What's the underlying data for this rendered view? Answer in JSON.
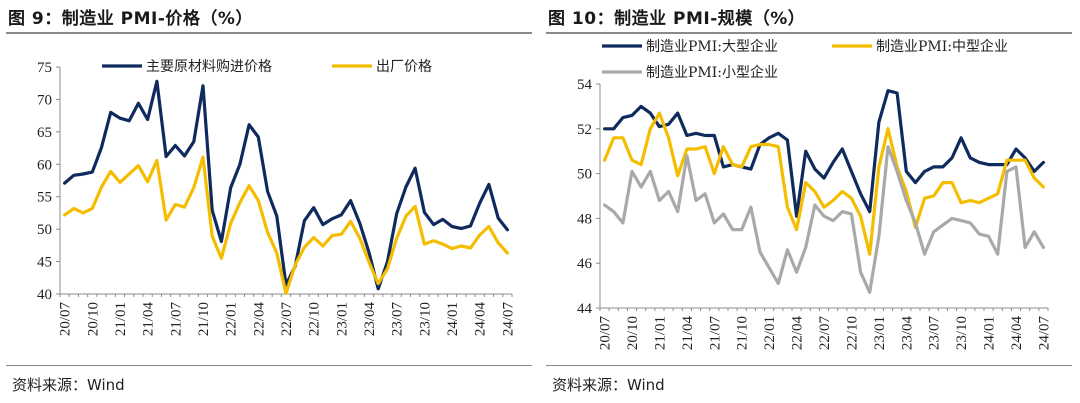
{
  "left_panel": {
    "title": "图 9：制造业 PMI-价格（%）",
    "source": "资料来源：Wind"
  },
  "right_panel": {
    "title": "图 10：制造业 PMI-规模（%）",
    "source": "资料来源：Wind"
  },
  "colors": {
    "navy": "#0f2a5c",
    "yellow": "#f5bd00",
    "gray": "#a9a9a9",
    "axis": "#8c8c8c"
  },
  "chart_data": [
    {
      "type": "line",
      "title": "",
      "xlabel": "",
      "ylabel": "",
      "ylim": [
        40,
        75
      ],
      "yticks": [
        40,
        45,
        50,
        55,
        60,
        65,
        70,
        75
      ],
      "x_tick_labels": [
        "20/07",
        "20/10",
        "21/01",
        "21/04",
        "21/07",
        "21/10",
        "22/01",
        "22/04",
        "22/07",
        "22/10",
        "23/01",
        "23/04",
        "23/07",
        "23/10",
        "24/01",
        "24/04",
        "24/07"
      ],
      "categories": [
        "20/07",
        "20/08",
        "20/09",
        "20/10",
        "20/11",
        "20/12",
        "21/01",
        "21/02",
        "21/03",
        "21/04",
        "21/05",
        "21/06",
        "21/07",
        "21/08",
        "21/09",
        "21/10",
        "21/11",
        "21/12",
        "22/01",
        "22/02",
        "22/03",
        "22/04",
        "22/05",
        "22/06",
        "22/07",
        "22/08",
        "22/09",
        "22/10",
        "22/11",
        "22/12",
        "23/01",
        "23/02",
        "23/03",
        "23/04",
        "23/05",
        "23/06",
        "23/07",
        "23/08",
        "23/09",
        "23/10",
        "23/11",
        "23/12",
        "24/01",
        "24/02",
        "24/03",
        "24/04",
        "24/05",
        "24/06",
        "24/07"
      ],
      "legend_position": "top",
      "series": [
        {
          "name": "主要原材料购进价格",
          "color": "#0f2a5c",
          "values": [
            57.1,
            58.3,
            58.5,
            58.8,
            62.6,
            68.0,
            67.1,
            66.7,
            69.4,
            66.9,
            72.8,
            61.2,
            62.9,
            61.3,
            63.5,
            72.1,
            52.9,
            48.1,
            56.4,
            60.0,
            66.1,
            64.2,
            55.8,
            52.0,
            41.4,
            44.3,
            51.3,
            53.3,
            50.7,
            51.6,
            52.2,
            54.4,
            50.9,
            46.4,
            40.8,
            45.0,
            52.4,
            56.5,
            59.4,
            52.6,
            50.7,
            51.5,
            50.4,
            50.1,
            50.5,
            54.0,
            56.9,
            51.7,
            49.9
          ]
        },
        {
          "name": "出厂价格",
          "color": "#f5bd00",
          "values": [
            52.2,
            53.2,
            52.5,
            53.2,
            56.5,
            58.9,
            57.2,
            58.5,
            59.8,
            57.3,
            60.6,
            51.4,
            53.8,
            53.4,
            56.4,
            61.1,
            48.9,
            45.5,
            50.9,
            54.1,
            56.7,
            54.4,
            49.5,
            46.3,
            40.1,
            44.5,
            47.2,
            48.7,
            47.4,
            49.0,
            49.2,
            51.2,
            48.6,
            44.9,
            41.6,
            43.9,
            48.6,
            52.0,
            53.5,
            47.7,
            48.2,
            47.7,
            47.0,
            47.4,
            47.1,
            49.1,
            50.4,
            47.9,
            46.3
          ]
        }
      ]
    },
    {
      "type": "line",
      "title": "",
      "xlabel": "",
      "ylabel": "",
      "ylim": [
        44,
        54
      ],
      "yticks": [
        44,
        46,
        48,
        50,
        52,
        54
      ],
      "x_tick_labels": [
        "20/07",
        "20/10",
        "21/01",
        "21/04",
        "21/07",
        "21/10",
        "22/01",
        "22/04",
        "22/07",
        "22/10",
        "23/01",
        "23/04",
        "23/07",
        "23/10",
        "24/01",
        "24/04",
        "24/07"
      ],
      "categories": [
        "20/07",
        "20/08",
        "20/09",
        "20/10",
        "20/11",
        "20/12",
        "21/01",
        "21/02",
        "21/03",
        "21/04",
        "21/05",
        "21/06",
        "21/07",
        "21/08",
        "21/09",
        "21/10",
        "21/11",
        "21/12",
        "22/01",
        "22/02",
        "22/03",
        "22/04",
        "22/05",
        "22/06",
        "22/07",
        "22/08",
        "22/09",
        "22/10",
        "22/11",
        "22/12",
        "23/01",
        "23/02",
        "23/03",
        "23/04",
        "23/05",
        "23/06",
        "23/07",
        "23/08",
        "23/09",
        "23/10",
        "23/11",
        "23/12",
        "24/01",
        "24/02",
        "24/03",
        "24/04",
        "24/05",
        "24/06",
        "24/07"
      ],
      "legend_position": "top",
      "series": [
        {
          "name": "制造业PMI:大型企业",
          "color": "#0f2a5c",
          "values": [
            52.0,
            52.0,
            52.5,
            52.6,
            53.0,
            52.7,
            52.1,
            52.2,
            52.7,
            51.7,
            51.8,
            51.7,
            51.7,
            50.3,
            50.4,
            50.3,
            50.2,
            51.3,
            51.6,
            51.8,
            51.5,
            48.1,
            51.0,
            50.2,
            49.8,
            50.5,
            51.1,
            50.1,
            49.1,
            48.3,
            52.3,
            53.7,
            53.6,
            50.1,
            49.6,
            50.1,
            50.3,
            50.3,
            50.7,
            51.6,
            50.7,
            50.5,
            50.4,
            50.4,
            50.4,
            51.1,
            50.7,
            50.1,
            50.5
          ]
        },
        {
          "name": "制造业PMI:中型企业",
          "color": "#f5bd00",
          "values": [
            50.6,
            51.6,
            51.6,
            50.6,
            50.4,
            52.0,
            52.7,
            51.6,
            49.9,
            51.1,
            51.1,
            51.2,
            50.0,
            51.2,
            50.4,
            50.3,
            51.2,
            51.3,
            51.3,
            51.2,
            48.5,
            47.5,
            49.6,
            49.2,
            48.5,
            48.8,
            49.2,
            48.9,
            48.1,
            46.4,
            50.3,
            52.0,
            50.3,
            49.2,
            47.6,
            48.9,
            49.0,
            49.6,
            49.6,
            48.7,
            48.8,
            48.7,
            48.9,
            49.1,
            50.6,
            50.6,
            50.6,
            49.8,
            49.4
          ]
        },
        {
          "name": "制造业PMI:小型企业",
          "color": "#a9a9a9",
          "values": [
            48.6,
            48.3,
            47.8,
            50.1,
            49.4,
            50.1,
            48.8,
            49.2,
            48.3,
            50.8,
            48.8,
            49.1,
            47.8,
            48.2,
            47.5,
            47.5,
            48.5,
            46.5,
            45.8,
            45.1,
            46.6,
            45.6,
            46.7,
            48.6,
            48.1,
            47.9,
            48.3,
            48.2,
            45.6,
            44.7,
            47.2,
            51.2,
            50.1,
            48.8,
            47.8,
            46.4,
            47.4,
            47.7,
            48.0,
            47.9,
            47.8,
            47.3,
            47.2,
            46.4,
            50.1,
            50.3,
            46.7,
            47.4,
            46.7
          ]
        }
      ]
    }
  ]
}
